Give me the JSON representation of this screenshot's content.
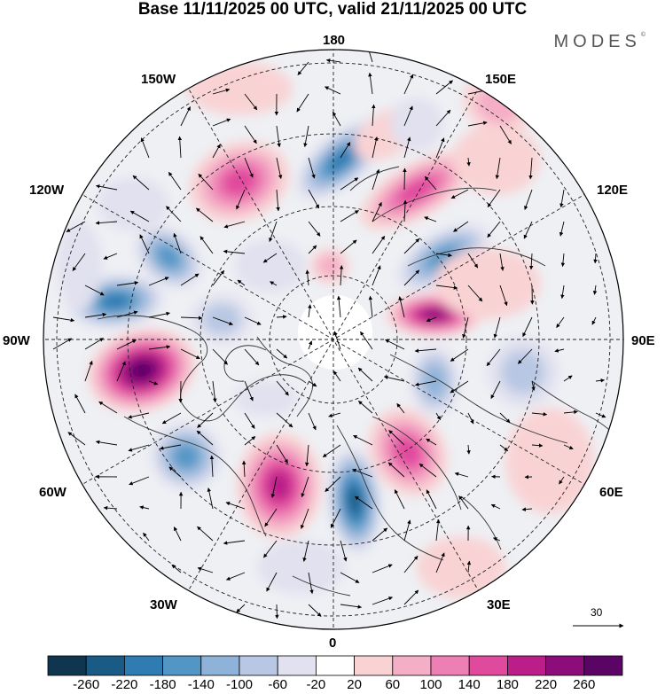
{
  "title": "Base 11/11/2025 00 UTC, valid 21/11/2025 00 UTC",
  "brand": "MODES",
  "brand_mark": "©",
  "longitude_labels": {
    "lon_180": "180",
    "lon_150w": "150W",
    "lon_150e": "150E",
    "lon_120w": "120W",
    "lon_120e": "120E",
    "lon_90w": "90W",
    "lon_90e": "90E",
    "lon_60w": "60W",
    "lon_60e": "60E",
    "lon_30w": "30W",
    "lon_30e": "30E",
    "lon_0": "0"
  },
  "reference_vector": "30",
  "colorbar": {
    "ticks": [
      "-260",
      "-220",
      "-180",
      "-140",
      "-100",
      "-60",
      "-20",
      "20",
      "60",
      "100",
      "140",
      "180",
      "220",
      "260"
    ],
    "colors": [
      "#10364f",
      "#1a5b86",
      "#2f7cb3",
      "#5196c5",
      "#8fb3d8",
      "#b8c7e3",
      "#e1e1ef",
      "#ffffff",
      "#f9d3d4",
      "#f4aec6",
      "#ee7fb4",
      "#e04a9d",
      "#bb1e89",
      "#8c0c7c",
      "#5a0566"
    ]
  }
}
